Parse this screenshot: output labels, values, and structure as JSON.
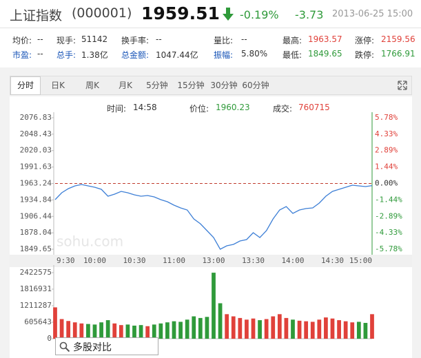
{
  "quote": {
    "name": "上证指数",
    "code": "(000001)",
    "price": "1959.51",
    "change_pct": "-0.19%",
    "change": "-3.73",
    "time": "2013-06-25 15:00"
  },
  "stats": [
    [
      {
        "label": "均价:",
        "value": "--"
      },
      {
        "label": "现手:",
        "value": "51142"
      },
      {
        "label": "换手率:",
        "value": "--"
      },
      {
        "label": "量比:",
        "value": "--"
      },
      {
        "label": "最高:",
        "value": "1963.57"
      },
      {
        "label": "涨停:",
        "value": "2159.56"
      }
    ],
    [
      {
        "label": "市盈:",
        "value": "--"
      },
      {
        "label": "总手:",
        "value": "1.38亿"
      },
      {
        "label": "总金额:",
        "value": "1047.44亿"
      },
      {
        "label": "振幅:",
        "value": "5.80%"
      },
      {
        "label": "最低:",
        "value": "1849.65"
      },
      {
        "label": "跌停:",
        "value": "1766.91"
      }
    ]
  ],
  "tabs": [
    "分时",
    "日K",
    "周K",
    "月K",
    "5分钟",
    "15分钟",
    "30分钟",
    "60分钟"
  ],
  "cursor": {
    "time_label": "时间:",
    "time": "14:58",
    "price_label": "价位:",
    "price": "1960.23",
    "volume_label": "成交:",
    "volume": "760715"
  },
  "watermark": "sohu.com",
  "search": "多股对比",
  "chart_data": [
    {
      "type": "line",
      "color": "#3d7fd6",
      "categories": [
        "9:30",
        null,
        null,
        null,
        null,
        null,
        "10:00",
        null,
        null,
        null,
        null,
        null,
        "10:30",
        null,
        null,
        null,
        null,
        null,
        "11:00",
        null,
        null,
        null,
        null,
        null,
        "13:00",
        null,
        null,
        null,
        null,
        null,
        "13:30",
        null,
        null,
        null,
        null,
        null,
        "14:00",
        null,
        null,
        null,
        null,
        null,
        "14:30",
        null,
        null,
        null,
        null,
        null,
        "15:00"
      ],
      "values": [
        1935.3,
        1947.2,
        1954.3,
        1959.1,
        1961.5,
        1959.1,
        1956.7,
        1953.1,
        1941.2,
        1944.8,
        1949.6,
        1947.2,
        1943.6,
        1941.2,
        1942.4,
        1940.0,
        1935.3,
        1931.7,
        1925.8,
        1921.0,
        1917.5,
        1902.0,
        1893.7,
        1881.8,
        1869.9,
        1849.7,
        1855.6,
        1858.0,
        1863.9,
        1866.3,
        1878.2,
        1869.9,
        1881.8,
        1902.0,
        1917.5,
        1923.4,
        1911.5,
        1917.5,
        1919.9,
        1921.0,
        1929.3,
        1941.2,
        1949.6,
        1953.1,
        1956.7,
        1960.3,
        1959.1,
        1957.9,
        1959.5
      ],
      "ylim": [
        1840.18,
        2086.29
      ],
      "yticks": [
        1849.65,
        1878.04,
        1906.44,
        1934.84,
        1963.24,
        1991.63,
        2020.03,
        2048.43,
        2076.83
      ],
      "y2lim": [
        -6.26,
        6.26
      ],
      "y2ticks": [
        {
          "value": -5.78,
          "label": "-5.78%"
        },
        {
          "value": -4.33,
          "label": "-4.33%"
        },
        {
          "value": -2.89,
          "label": "-2.89%"
        },
        {
          "value": -1.44,
          "label": "-1.44%"
        },
        {
          "value": 0,
          "label": "0.00%"
        },
        {
          "value": 1.44,
          "label": "1.44%"
        },
        {
          "value": 2.89,
          "label": "2.89%"
        },
        {
          "value": 4.33,
          "label": "4.33%"
        },
        {
          "value": 5.78,
          "label": "5.78%"
        }
      ]
    },
    {
      "type": "bar",
      "up_color": "#e0413a",
      "down_color": "#2f9a3a",
      "values": [
        1150000,
        720000,
        650000,
        600000,
        560000,
        540000,
        520000,
        600000,
        680000,
        560000,
        500000,
        520000,
        480000,
        500000,
        460000,
        520000,
        560000,
        600000,
        640000,
        620000,
        700000,
        820000,
        760000,
        800000,
        2420000,
        1300000,
        900000,
        820000,
        760000,
        700000,
        740000,
        680000,
        720000,
        820000,
        900000,
        760000,
        700000,
        660000,
        640000,
        620000,
        700000,
        780000,
        740000,
        680000,
        640000,
        600000,
        620000,
        580000,
        900000
      ],
      "ylim": [
        0,
        2700000
      ],
      "yticks": [
        0,
        605643,
        1211287,
        1816931,
        2422575
      ]
    }
  ]
}
